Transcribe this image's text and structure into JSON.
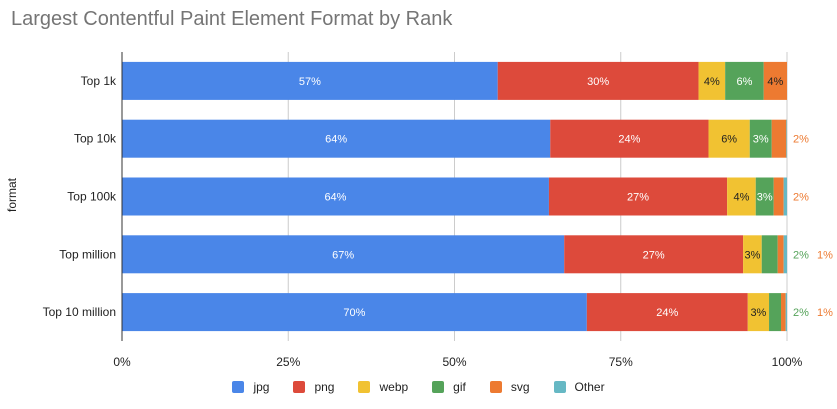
{
  "chart_data": {
    "type": "bar",
    "orientation": "horizontal",
    "stacked": true,
    "title": "Largest Contentful Paint Element Format by Rank",
    "ylabel": "format",
    "xlabel": "",
    "xlim": [
      0,
      100
    ],
    "x_ticks": [
      "0%",
      "25%",
      "50%",
      "75%",
      "100%"
    ],
    "grid": true,
    "legend_position": "bottom",
    "categories": [
      "Top 1k",
      "Top 10k",
      "Top 100k",
      "Top million",
      "Top 10 million"
    ],
    "series": [
      {
        "name": "jpg",
        "color": "#4a86e8",
        "label_color": "#ffffff",
        "values": [
          56.5,
          64.4,
          64.2,
          66.5,
          69.9
        ]
      },
      {
        "name": "png",
        "color": "#dd4a3b",
        "label_color": "#ffffff",
        "values": [
          30.2,
          23.8,
          26.8,
          26.9,
          24.2
        ]
      },
      {
        "name": "webp",
        "color": "#f1c232",
        "label_color": "#222222",
        "values": [
          4.0,
          6.2,
          4.3,
          2.8,
          3.2
        ]
      },
      {
        "name": "gif",
        "color": "#55a35a",
        "label_color": "#ffffff",
        "values": [
          5.8,
          3.3,
          2.7,
          2.4,
          1.8
        ]
      },
      {
        "name": "svg",
        "color": "#ed7a31",
        "label_color": "#222222",
        "values": [
          3.5,
          2.2,
          1.5,
          0.9,
          0.7
        ]
      },
      {
        "name": "Other",
        "color": "#66b8c4",
        "label_color": "#222222",
        "values": [
          0.0,
          0.1,
          0.5,
          0.5,
          0.2
        ]
      }
    ]
  }
}
